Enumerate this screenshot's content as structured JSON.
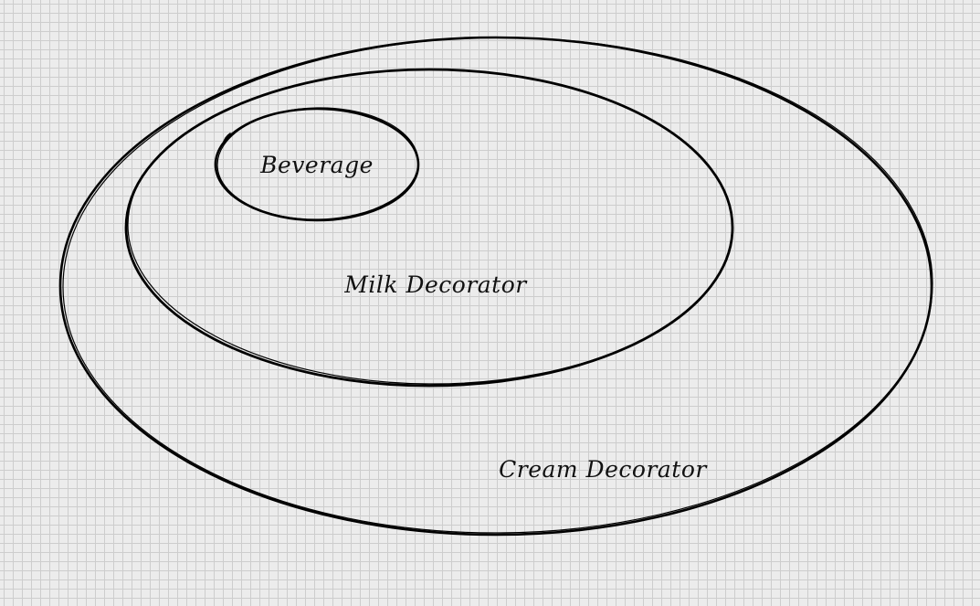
{
  "diagram": {
    "type": "nested-ellipses",
    "colors": {
      "background": "#ececec",
      "grid": "#cdcdcd",
      "stroke": "#000000",
      "text": "#111111"
    },
    "nodes": [
      {
        "id": "cream",
        "label": "Cream Decorator",
        "contains": "milk"
      },
      {
        "id": "milk",
        "label": "Milk Decorator",
        "contains": "beverage"
      },
      {
        "id": "beverage",
        "label": "Beverage"
      }
    ]
  }
}
